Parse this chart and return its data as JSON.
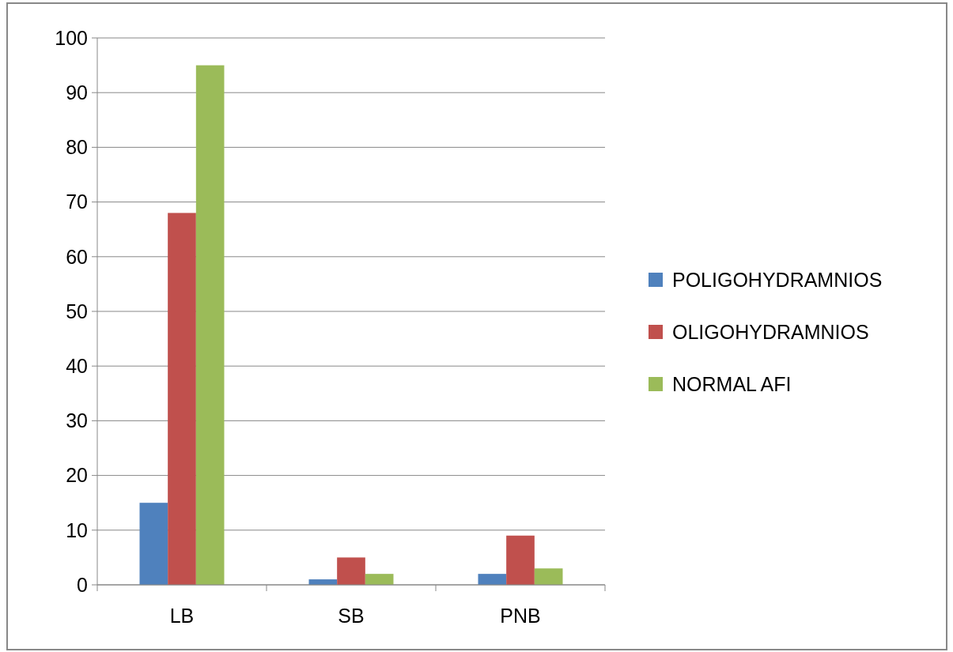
{
  "chart_data": {
    "type": "bar",
    "categories": [
      "LB",
      "SB",
      "PNB"
    ],
    "series": [
      {
        "name": "POLIGOHYDRAMNIOS",
        "color": "#4f81bd",
        "values": [
          15,
          1,
          2
        ]
      },
      {
        "name": "OLIGOHYDRAMNIOS",
        "color": "#c0504d",
        "values": [
          68,
          5,
          9
        ]
      },
      {
        "name": "NORMAL AFI",
        "color": "#9bbb59",
        "values": [
          95,
          2,
          3
        ]
      }
    ],
    "ylim": [
      0,
      100
    ],
    "yticks": [
      0,
      10,
      20,
      30,
      40,
      50,
      60,
      70,
      80,
      90,
      100
    ],
    "grid": "y",
    "legend": "right"
  }
}
